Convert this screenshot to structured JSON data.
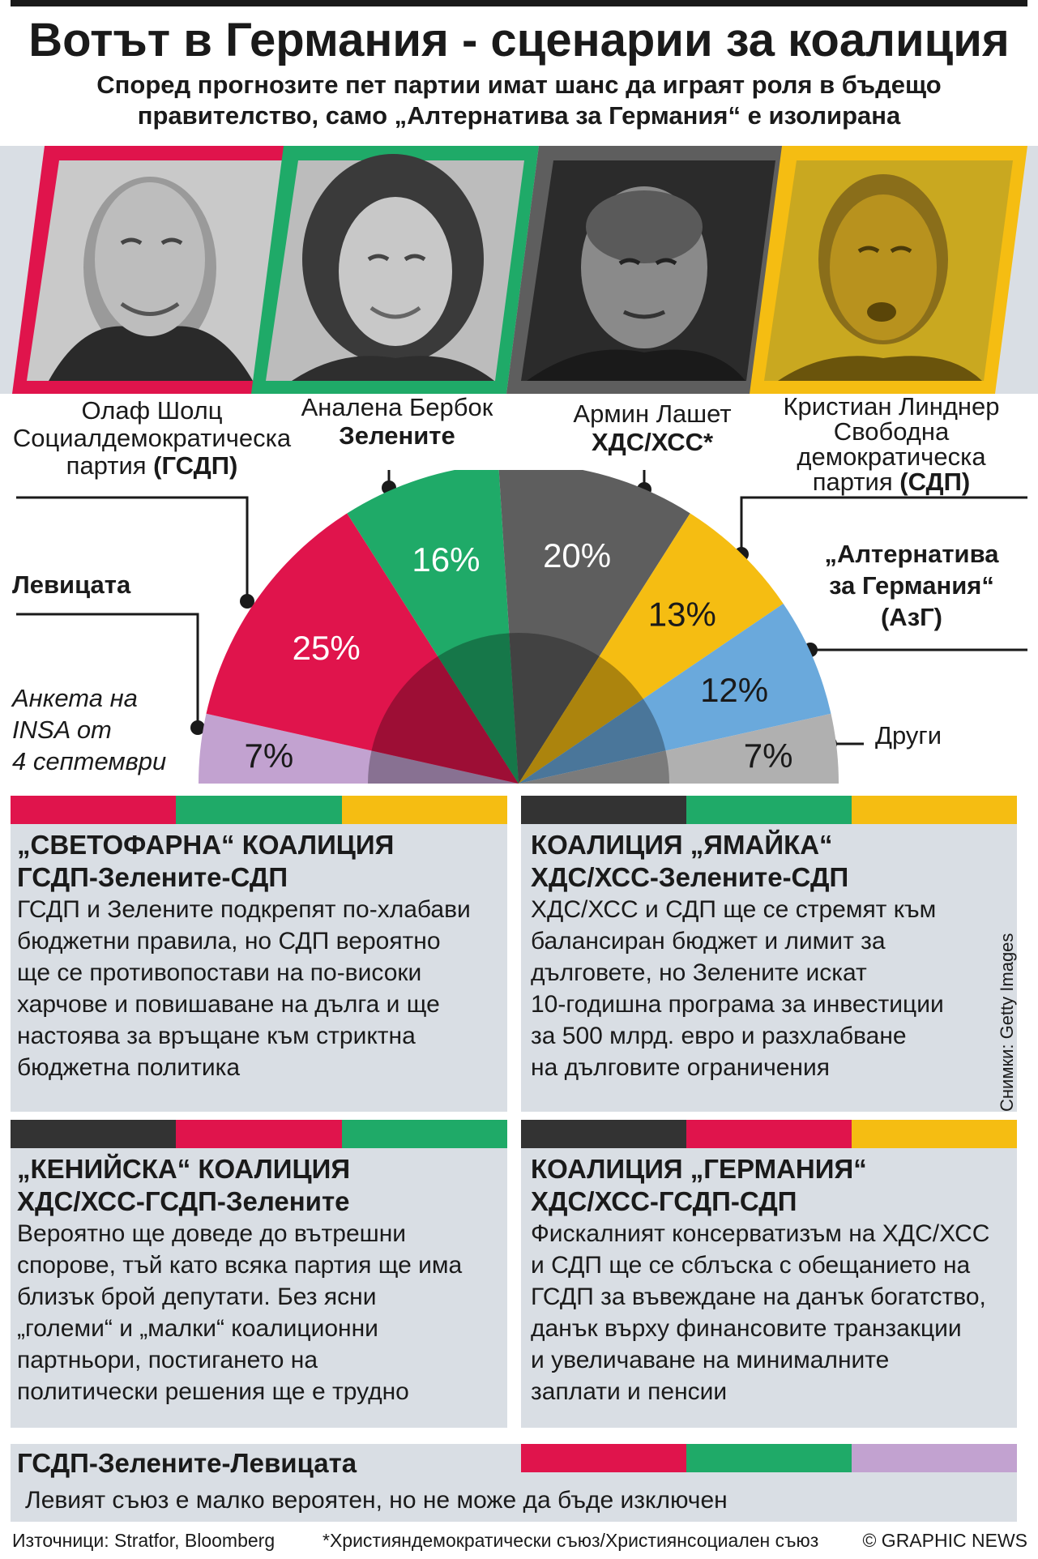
{
  "title": "Вотът в Германия - сценарии за коалиция",
  "subtitle_line1": "Според прогнозите пет партии имат шанс да играят роля в бъдещо",
  "subtitle_line2": "правителство, само „Алтернатива за Германия“ е изолирана",
  "colors": {
    "spd": "#e0144c",
    "greens": "#1faa68",
    "cdu": "#5e5e5e",
    "fdp": "#f5bd12",
    "afd": "#6aa9dc",
    "left": "#c2a2d0",
    "others": "#b0b0b0",
    "card_bg": "#d9dee4"
  },
  "candidates": [
    {
      "name": "Олаф Шолц",
      "party_line1": "Социалдемократическа",
      "party_line2_plain": "партия ",
      "party_line2_bold": "(ГСДП)"
    },
    {
      "name": "Аналена Бербок",
      "party_bold": "Зелените"
    },
    {
      "name": "Армин Лашет",
      "party_bold": "ХДС/ХСС*"
    },
    {
      "name": "Кристиан Линднер",
      "party_line1": "Свободна",
      "party_line2": "демократическа",
      "party_line3_plain": "партия ",
      "party_line3_bold": "(СДП)"
    }
  ],
  "labels": {
    "left": "Левицата",
    "afd_line1": "„Алтернатива",
    "afd_line2": "за Германия“",
    "afd_line3": "(АзГ)",
    "others": "Други",
    "poll_line1": "Анкета на",
    "poll_line2": "INSA от",
    "poll_line3": "4 септември"
  },
  "chart_data": {
    "type": "pie",
    "subtype": "semicircle-parliament",
    "note_source": "Анкета на INSA от 4 септември",
    "categories": [
      "Левицата",
      "ГСДП",
      "Зелените",
      "ХДС/ХСС",
      "СДП",
      "АзГ",
      "Други"
    ],
    "values": [
      7,
      25,
      16,
      20,
      13,
      12,
      7
    ],
    "value_labels": [
      "7%",
      "25%",
      "16%",
      "20%",
      "13%",
      "12%",
      "7%"
    ]
  },
  "coalitions": [
    {
      "title1": "„СВЕТОФАРНА“ КОАЛИЦИЯ",
      "title2": "ГСДП-Зелените-СДП",
      "colors": [
        "#e0144c",
        "#1faa68",
        "#f5bd12"
      ],
      "lines": [
        "ГСДП и Зелените подкрепят по-хлабави",
        "бюджетни правила, но СДП вероятно",
        "ще се противопостави на по-високи",
        "харчове и повишаване на дълга и ще",
        "настоява за връщане към стриктна",
        "бюджетна политика"
      ]
    },
    {
      "title1": "КОАЛИЦИЯ „ЯМАЙКА“",
      "title2": "ХДС/ХСС-Зелените-СДП",
      "colors": [
        "#333333",
        "#1faa68",
        "#f5bd12"
      ],
      "lines": [
        "ХДС/ХСС и СДП ще се стремят към",
        "балансиран бюджет и лимит за",
        "дълговете, но Зелените искат",
        "10-годишна програма за инвестиции",
        "за 500 млрд. евро и разхлабване",
        "на дълговите ограничения"
      ]
    },
    {
      "title1": "„КЕНИЙСКА“ КОАЛИЦИЯ",
      "title2": "ХДС/ХСС-ГСДП-Зелените",
      "colors": [
        "#333333",
        "#e0144c",
        "#1faa68"
      ],
      "lines": [
        "Вероятно ще доведе до вътрешни",
        "спорове, тъй като всяка партия ще има",
        "близък брой депутати. Без ясни",
        "„големи“ и „малки“ коалиционни",
        "партньори, постигането на",
        "политически решения ще е трудно"
      ]
    },
    {
      "title1": "КОАЛИЦИЯ „ГЕРМАНИЯ“",
      "title2": "ХДС/ХСС-ГСДП-СДП",
      "colors": [
        "#333333",
        "#e0144c",
        "#f5bd12"
      ],
      "lines": [
        "Фискалният консерватизъм на ХДС/ХСС",
        "и СДП ще се сблъска с обещанието на",
        "ГСДП за въвеждане на данък богатство,",
        "данък върху финансовите транзакции",
        "и увеличаване на минималните",
        "заплати и пенсии"
      ]
    }
  ],
  "bottom": {
    "title": "ГСДП-Зелените-Левицата",
    "text": "Левият съюз е малко вероятен, но не може да бъде изключен",
    "colors": [
      "#e0144c",
      "#1faa68",
      "#c2a2d0"
    ]
  },
  "photo_credit": "Снимки: Getty Images",
  "footer": {
    "sources": "Източници: Stratfor, Bloomberg",
    "footnote": "*Християндемократически съюз/Християнсоциален съюз",
    "copyright": "© GRAPHIC NEWS"
  }
}
